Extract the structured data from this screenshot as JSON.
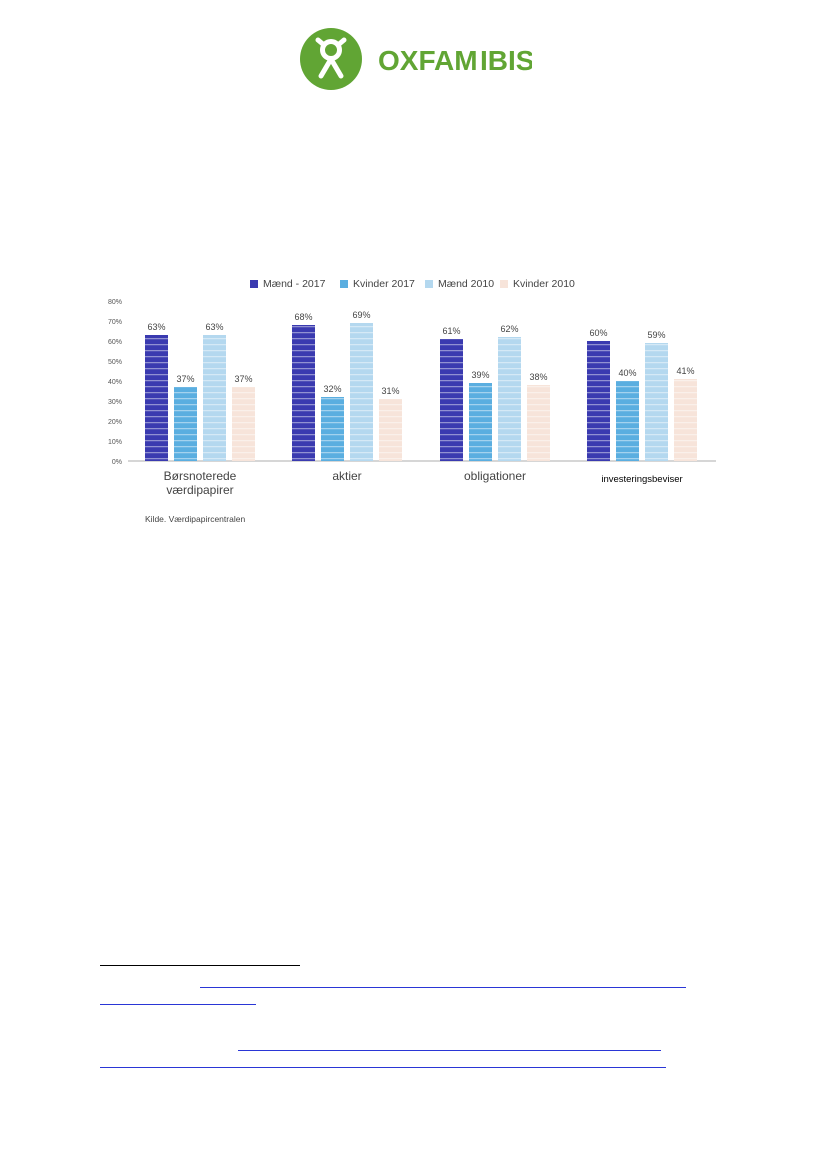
{
  "logo": {
    "text_left": "OXFAM",
    "text_right": "IBIS",
    "brand_color": "#61a534"
  },
  "chart_data": {
    "type": "bar",
    "categories": [
      "Børsnoterede værdipapirer",
      "aktier",
      "obligationer",
      "investeringsbeviser"
    ],
    "category_lines": [
      [
        "Børsnoterede",
        "værdipapirer"
      ],
      [
        "aktier"
      ],
      [
        "obligationer"
      ],
      [
        "investeringsbeviser"
      ]
    ],
    "series": [
      {
        "name": "Mænd - 2017",
        "color": "#3a3ab0",
        "values": [
          63,
          68,
          61,
          60
        ],
        "labels": [
          "63%",
          "68%",
          "61%",
          "60%"
        ]
      },
      {
        "name": "Kvinder 2017",
        "color": "#5aaee0",
        "values": [
          37,
          32,
          39,
          40
        ],
        "labels": [
          "37%",
          "32%",
          "39%",
          "40%"
        ]
      },
      {
        "name": "Mænd 2010",
        "color": "#b4d8ef",
        "values": [
          63,
          69,
          62,
          59
        ],
        "labels": [
          "63%",
          "69%",
          "62%",
          "59%"
        ]
      },
      {
        "name": "Kvinder 2010",
        "color": "#f7e4da",
        "values": [
          37,
          31,
          38,
          41
        ],
        "labels": [
          "37%",
          "31%",
          "38%",
          "41%"
        ]
      }
    ],
    "y_ticks": [
      "0%",
      "10%",
      "20%",
      "30%",
      "40%",
      "50%",
      "60%",
      "70%",
      "80%"
    ],
    "ylim": [
      0,
      80
    ],
    "legend_position": "top",
    "grid": false
  },
  "source_note": "Kilde. Værdipapircentralen"
}
